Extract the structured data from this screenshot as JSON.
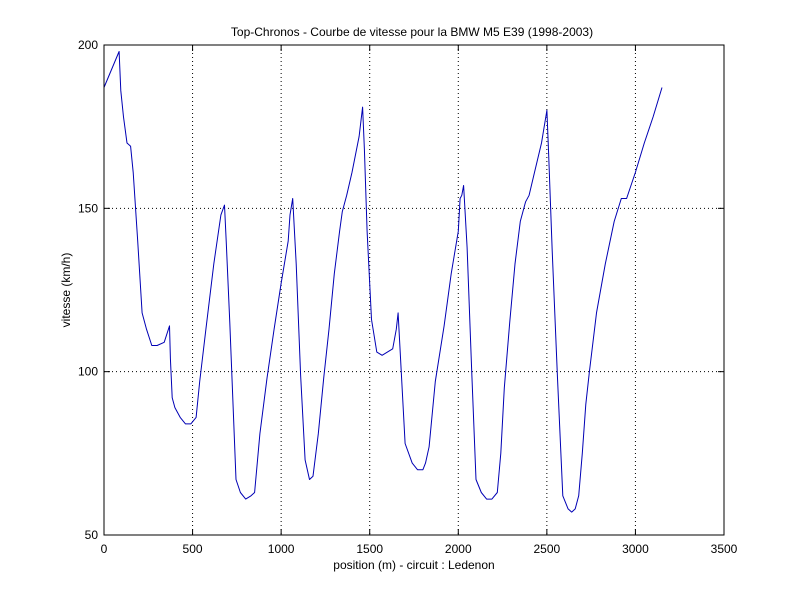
{
  "chart_data": {
    "type": "line",
    "title": "Top-Chronos - Courbe de vitesse pour la BMW M5 E39 (1998-2003)",
    "xlabel": "position (m) - circuit : Ledenon",
    "ylabel": "vitesse (km/h)",
    "xlim": [
      0,
      3500
    ],
    "ylim": [
      50,
      200
    ],
    "xticks": [
      0,
      500,
      1000,
      1500,
      2000,
      2500,
      3000,
      3500
    ],
    "yticks": [
      50,
      100,
      150,
      200
    ],
    "xtick_labels": [
      "0",
      "500",
      "1000",
      "1500",
      "2000",
      "2500",
      "3000",
      "3500"
    ],
    "ytick_labels": [
      "50",
      "100",
      "150",
      "200"
    ],
    "grid": true,
    "grid_style": "dotted",
    "colors": {
      "line": "#0000b4",
      "axes": "#000000",
      "grid": "#000000",
      "background": "#ffffff"
    },
    "series": [
      {
        "x": [
          0,
          85,
          95,
          110,
          130,
          150,
          165,
          190,
          215,
          240,
          270,
          300,
          340,
          370,
          375,
          385,
          400,
          430,
          460,
          490,
          520,
          540,
          575,
          620,
          660,
          680,
          690,
          710,
          745,
          770,
          800,
          830,
          850,
          880,
          920,
          960,
          1000,
          1040,
          1050,
          1065,
          1085,
          1110,
          1135,
          1160,
          1180,
          1210,
          1240,
          1270,
          1300,
          1330,
          1345,
          1370,
          1400,
          1440,
          1460,
          1470,
          1485,
          1510,
          1540,
          1570,
          1600,
          1630,
          1650,
          1660,
          1680,
          1700,
          1740,
          1770,
          1800,
          1815,
          1835,
          1870,
          1920,
          1960,
          2000,
          2010,
          2020,
          2030,
          2050,
          2075,
          2100,
          2130,
          2160,
          2190,
          2220,
          2240,
          2260,
          2290,
          2320,
          2350,
          2380,
          2400,
          2430,
          2470,
          2500,
          2510,
          2530,
          2560,
          2590,
          2620,
          2640,
          2660,
          2680,
          2700,
          2720,
          2740,
          2780,
          2830,
          2880,
          2920,
          2950,
          3000,
          3050,
          3100,
          3150
        ],
        "y": [
          187,
          198,
          186,
          178,
          170,
          169,
          161,
          140,
          118,
          113,
          108,
          108,
          109,
          114,
          104,
          92,
          89,
          86,
          84,
          84,
          86,
          97,
          113,
          133,
          148,
          151,
          140,
          115,
          67,
          63,
          61,
          62,
          63,
          81,
          98,
          113,
          127,
          140,
          148,
          153,
          133,
          99,
          73,
          67,
          68,
          81,
          98,
          113,
          130,
          143,
          149,
          154,
          161,
          172,
          181,
          168,
          143,
          116,
          106,
          105,
          106,
          107,
          113,
          118,
          98,
          78,
          72,
          70,
          70,
          72,
          77,
          97,
          114,
          130,
          143,
          153,
          154,
          157,
          138,
          101,
          67,
          63,
          61,
          61,
          63,
          75,
          95,
          115,
          133,
          146,
          152,
          154,
          161,
          170,
          180,
          167,
          137,
          98,
          62,
          58,
          57,
          58,
          62,
          75,
          90,
          100,
          118,
          133,
          146,
          153,
          153,
          161,
          170,
          178,
          187
        ]
      }
    ]
  }
}
